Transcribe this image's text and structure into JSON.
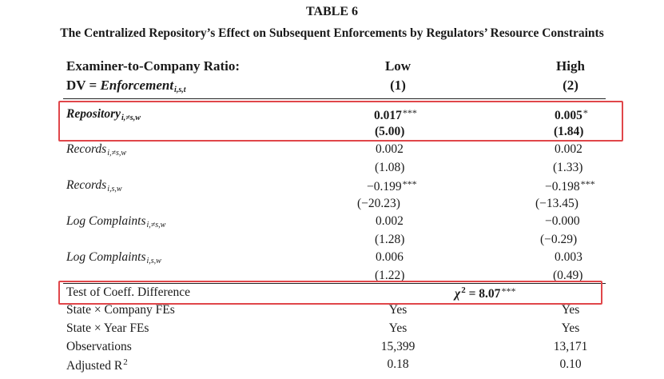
{
  "table": {
    "label": "TABLE 6",
    "caption": "The Centralized Repository’s Effect on Subsequent Enforcements by Regulators’ Resource Constraints",
    "header": {
      "row1_label": "Examiner-to-Company Ratio:",
      "row2_prefix": "DV = ",
      "row2_var": "Enforcement",
      "row2_sub": "i,s,t",
      "columns": [
        {
          "name": "Low",
          "number": "(1)"
        },
        {
          "name": "High",
          "number": "(2)"
        }
      ]
    },
    "rows": [
      {
        "var": "Repository",
        "sub": "i,≠s,w",
        "coef": [
          "0.017",
          "0.005"
        ],
        "stars": [
          "***",
          "*"
        ],
        "se": [
          "(5.00)",
          "(1.84)"
        ]
      },
      {
        "var": "Records",
        "sub": "i,≠s,w",
        "coef": [
          "0.002",
          "0.002"
        ],
        "stars": [
          "",
          ""
        ],
        "se": [
          "(1.08)",
          "(1.33)"
        ]
      },
      {
        "var": "Records",
        "sub": "i,s,w",
        "coef": [
          "−0.199",
          "−0.198"
        ],
        "stars": [
          "***",
          "***"
        ],
        "se": [
          "(−20.23)",
          "(−13.45)"
        ]
      },
      {
        "var": "Log Complaints",
        "sub": "i,≠s,w",
        "coef": [
          "0.002",
          "−0.000"
        ],
        "stars": [
          "",
          ""
        ],
        "se": [
          "(1.28)",
          "(−0.29)"
        ]
      },
      {
        "var": "Log Complaints",
        "sub": "i,s,w",
        "coef": [
          "0.006",
          "0.003"
        ],
        "stars": [
          "",
          ""
        ],
        "se": [
          "(1.22)",
          "(0.49)"
        ]
      }
    ],
    "coef_test": {
      "label": "Test of Coeff. Difference",
      "chi": "χ",
      "sup": "2",
      "value": " = 8.07",
      "stars": "***"
    },
    "footer": [
      {
        "label": "State × Company FEs",
        "values": [
          "Yes",
          "Yes"
        ]
      },
      {
        "label": "State × Year FEs",
        "values": [
          "Yes",
          "Yes"
        ]
      },
      {
        "label": "Observations",
        "values": [
          "15,399",
          "13,171"
        ]
      },
      {
        "label": "Adjusted R",
        "sup": "2",
        "values": [
          "0.18",
          "0.10"
        ]
      }
    ]
  },
  "highlight_color": "#e0464a"
}
